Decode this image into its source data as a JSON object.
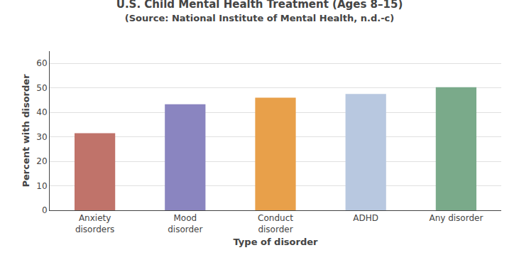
{
  "chart_data": {
    "type": "bar",
    "title": "U.S. Child Mental Health Treatment (Ages 8–15)",
    "subtitle": "(Source: National Institute of Mental Health, n.d.-c)",
    "xlabel": "Type of disorder",
    "ylabel": "Percent with disorder",
    "categories": [
      "Anxiety\ndisorders",
      "Mood\ndisorder",
      "Conduct\ndisorder",
      "ADHD",
      "Any disorder"
    ],
    "values": [
      31.5,
      43.3,
      46.0,
      47.5,
      50.3
    ],
    "colors": [
      "#c0736a",
      "#8a85c0",
      "#e8a04a",
      "#b8c8e0",
      "#7aaa8a"
    ],
    "ylim": [
      0,
      65
    ],
    "yticks": [
      0,
      10,
      20,
      30,
      40,
      50,
      60
    ],
    "grid": true
  }
}
